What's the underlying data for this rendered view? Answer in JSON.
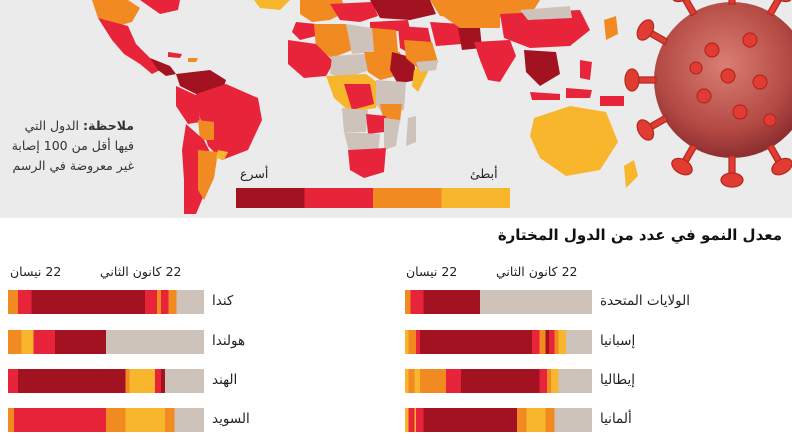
{
  "map": {
    "note_bold": "ملاحظة:",
    "note_text": "الدول التي فيها أقل من 100 إصابة غير معروضة في الرسم",
    "legend": {
      "fast_label": "أسرع",
      "slow_label": "أبطئ",
      "colors_fast_to_slow": [
        "#a31220",
        "#e8243a",
        "#f28a22",
        "#f8b62c"
      ],
      "no_data_color": "#cdc3bb"
    },
    "virus_illustration": "coronavirus-illustration"
  },
  "chart_title": "معدل النمو في عدد من الدول المختارة",
  "date_start": "22 كانون الثاني",
  "date_end": "22 نيسان",
  "chart_data": {
    "type": "bar",
    "description_of_encoding": "growth rate category per day, Jan 22 to Apr 22",
    "title": "معدل النمو في عدد من الدول المختارة",
    "x_range": [
      "22 كانون الثاني",
      "22 نيسان"
    ],
    "categories_legend": [
      "أسرع",
      "أبطئ"
    ],
    "palette": {
      "darkred": "#a31220",
      "red": "#e8243a",
      "orange": "#f28a22",
      "yellow": "#f8b62c",
      "none": "#cdc3bb"
    },
    "countries": [
      {
        "name": "الولايات المتحدة",
        "segments": [
          [
            "orange",
            0.03
          ],
          [
            "red",
            0.1
          ],
          [
            "darkred",
            0.4
          ],
          [
            "none",
            1.0
          ]
        ]
      },
      {
        "name": "إسبانيا",
        "segments": [
          [
            "yellow",
            0.02
          ],
          [
            "orange",
            0.06
          ],
          [
            "red",
            0.08
          ],
          [
            "darkred",
            0.26
          ],
          [
            "darkred",
            0.68
          ],
          [
            "red",
            0.72
          ],
          [
            "orange",
            0.75
          ],
          [
            "darkred",
            0.77
          ],
          [
            "red",
            0.8
          ],
          [
            "orange",
            0.82
          ],
          [
            "yellow",
            0.86
          ],
          [
            "none",
            1.0
          ]
        ]
      },
      {
        "name": "إيطاليا",
        "segments": [
          [
            "yellow",
            0.02
          ],
          [
            "orange",
            0.05
          ],
          [
            "yellow",
            0.08
          ],
          [
            "orange",
            0.22
          ],
          [
            "red",
            0.3
          ],
          [
            "darkred",
            0.72
          ],
          [
            "red",
            0.76
          ],
          [
            "orange",
            0.78
          ],
          [
            "yellow",
            0.82
          ],
          [
            "none",
            1.0
          ]
        ]
      },
      {
        "name": "ألمانيا",
        "segments": [
          [
            "yellow",
            0.02
          ],
          [
            "red",
            0.05
          ],
          [
            "yellow",
            0.06
          ],
          [
            "red",
            0.1
          ],
          [
            "darkred",
            0.45
          ],
          [
            "darkred",
            0.6
          ],
          [
            "orange",
            0.65
          ],
          [
            "yellow",
            0.75
          ],
          [
            "orange",
            0.8
          ],
          [
            "none",
            1.0
          ]
        ]
      },
      {
        "name": "كندا",
        "segments": [
          [
            "orange",
            0.05
          ],
          [
            "red",
            0.12
          ],
          [
            "darkred",
            0.42
          ],
          [
            "darkred",
            0.5
          ],
          [
            "darkred",
            0.7
          ],
          [
            "red",
            0.76
          ],
          [
            "orange",
            0.78
          ],
          [
            "red",
            0.82
          ],
          [
            "orange",
            0.86
          ],
          [
            "none",
            1.0
          ]
        ]
      },
      {
        "name": "هولندا",
        "segments": [
          [
            "orange",
            0.07
          ],
          [
            "yellow",
            0.13
          ],
          [
            "red",
            0.24
          ],
          [
            "darkred",
            0.5
          ],
          [
            "none",
            1.0
          ]
        ]
      },
      {
        "name": "الهند",
        "segments": [
          [
            "red",
            0.05
          ],
          [
            "darkred",
            0.6
          ],
          [
            "orange",
            0.62
          ],
          [
            "yellow",
            0.75
          ],
          [
            "red",
            0.78
          ],
          [
            "darkred",
            0.8
          ],
          [
            "none",
            1.0
          ]
        ]
      },
      {
        "name": "السويد",
        "segments": [
          [
            "orange",
            0.03
          ],
          [
            "red",
            0.5
          ],
          [
            "orange",
            0.6
          ],
          [
            "yellow",
            0.8
          ],
          [
            "orange",
            0.85
          ],
          [
            "none",
            1.0
          ]
        ]
      }
    ]
  }
}
